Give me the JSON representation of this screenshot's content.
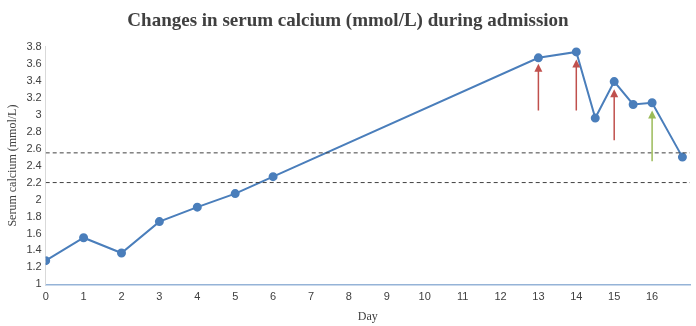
{
  "chart_data": {
    "type": "line",
    "title": "Changes in serum calcium (mmol/L) during admission",
    "x_label": "Day",
    "y_label": "Serum calcium (mmol/L)",
    "x": [
      0,
      1,
      2,
      3,
      4,
      5,
      6,
      13,
      14,
      14.5,
      15,
      15.5,
      16,
      16.8
    ],
    "values": [
      1.28,
      1.55,
      1.37,
      1.74,
      1.91,
      2.07,
      2.27,
      3.67,
      3.74,
      2.96,
      3.39,
      3.12,
      3.14,
      2.5
    ],
    "color": "#4a7ebb",
    "marker": "circle",
    "xlim": [
      0,
      17
    ],
    "xticks": [
      0,
      1,
      2,
      3,
      4,
      5,
      6,
      7,
      8,
      9,
      10,
      11,
      12,
      13,
      14,
      15,
      16
    ],
    "ylim": [
      1,
      3.8
    ],
    "yticks": [
      1,
      1.2,
      1.4,
      1.6,
      1.8,
      2,
      2.2,
      2.4,
      2.6,
      2.8,
      3,
      3.2,
      3.4,
      3.6,
      3.8
    ],
    "grid": false,
    "hlines": [
      {
        "value": 2.55,
        "line_style": "dashed",
        "color": "#404040"
      },
      {
        "value": 2.2,
        "line_style": "dashed",
        "color": "#404040"
      }
    ],
    "arrows": [
      {
        "x": 13,
        "y_from": 3.05,
        "y_to": 3.6,
        "color": "#c0504d"
      },
      {
        "x": 14,
        "y_from": 3.05,
        "y_to": 3.65,
        "color": "#c0504d"
      },
      {
        "x": 15,
        "y_from": 2.7,
        "y_to": 3.3,
        "color": "#c0504d"
      },
      {
        "x": 16,
        "y_from": 2.45,
        "y_to": 3.05,
        "color": "#9bbb59"
      }
    ]
  }
}
